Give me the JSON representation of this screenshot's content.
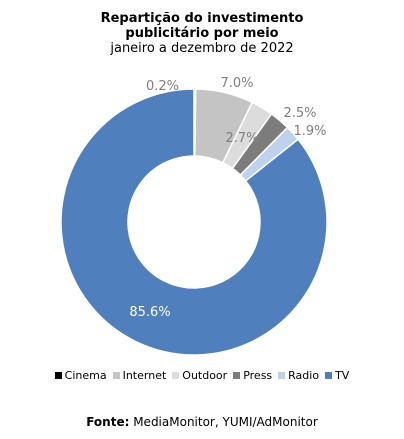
{
  "chart_data": {
    "type": "pie",
    "donut": true,
    "title": "Repartição do investimento publicitário por meio",
    "subtitle": "janeiro a dezembro de 2022",
    "categories": [
      "Cinema",
      "Internet",
      "Outdoor",
      "Press",
      "Radio",
      "TV"
    ],
    "values": [
      0.2,
      7.0,
      2.7,
      2.5,
      1.9,
      85.6
    ],
    "data_labels": [
      "0.2%",
      "7.0%",
      "2.7%",
      "2.5%",
      "1.9%",
      "85.6%"
    ],
    "colors": [
      "#000000",
      "#c4c4c4",
      "#dcdcdc",
      "#7c7c7c",
      "#bdd2ec",
      "#4f7fbd"
    ],
    "legend_position": "bottom"
  },
  "title_line1": "Repartição do investimento",
  "title_line2": "publicitário por meio",
  "subtitle": "janeiro a dezembro de 2022",
  "source": {
    "label": "Fonte:",
    "text": "MediaMonitor, YUMI/AdMonitor"
  }
}
